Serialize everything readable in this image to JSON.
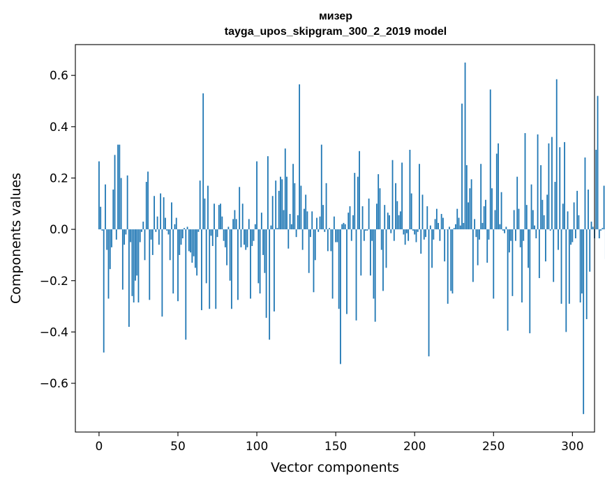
{
  "chart_data": {
    "type": "bar",
    "title_line1": "мизер",
    "title_line2": "tayga_upos_skipgram_300_2_2019 model",
    "xlabel": "Vector components",
    "ylabel": "Components values",
    "xlim": [
      -15,
      314
    ],
    "ylim": [
      -0.79,
      0.72
    ],
    "xticks": [
      0,
      50,
      100,
      150,
      200,
      250,
      300
    ],
    "xtick_labels": [
      "0",
      "50",
      "100",
      "150",
      "200",
      "250",
      "300"
    ],
    "yticks": [
      -0.6,
      -0.4,
      -0.2,
      0.0,
      0.2,
      0.4,
      0.6
    ],
    "ytick_labels": [
      "−0.6",
      "−0.4",
      "−0.2",
      "0.0",
      "0.2",
      "0.4",
      "0.6"
    ],
    "bar_color": "#1f77b4",
    "values": [
      0.265,
      0.088,
      -0.005,
      -0.48,
      0.175,
      -0.08,
      -0.27,
      -0.155,
      -0.07,
      0.155,
      0.29,
      -0.04,
      0.33,
      0.33,
      0.2,
      -0.235,
      -0.06,
      -0.02,
      0.21,
      -0.38,
      -0.05,
      -0.26,
      -0.285,
      -0.2,
      -0.18,
      -0.285,
      -0.05,
      -0.01,
      0.03,
      -0.12,
      0.185,
      0.225,
      -0.275,
      -0.04,
      -0.1,
      0.13,
      -0.01,
      0.05,
      -0.06,
      0.14,
      -0.34,
      0.125,
      0.045,
      -0.005,
      -0.02,
      -0.12,
      0.105,
      -0.25,
      0.02,
      0.045,
      -0.28,
      -0.1,
      -0.06,
      -0.035,
      0.005,
      -0.43,
      0.01,
      -0.085,
      -0.09,
      -0.13,
      -0.105,
      -0.15,
      -0.18,
      -0.01,
      0.19,
      -0.315,
      0.53,
      0.12,
      -0.21,
      0.17,
      -0.31,
      -0.025,
      -0.065,
      0.1,
      -0.31,
      -0.03,
      0.095,
      0.1,
      0.05,
      -0.045,
      -0.07,
      -0.14,
      0.01,
      -0.2,
      -0.31,
      0.04,
      0.075,
      0.04,
      -0.275,
      0.165,
      -0.07,
      0.1,
      -0.06,
      -0.08,
      -0.07,
      0.04,
      -0.27,
      -0.065,
      -0.045,
      0.02,
      0.265,
      -0.21,
      -0.25,
      0.065,
      -0.1,
      -0.17,
      -0.345,
      0.285,
      -0.43,
      0.015,
      0.13,
      -0.32,
      0.19,
      0.005,
      0.15,
      0.205,
      0.195,
      0.075,
      0.315,
      0.205,
      -0.075,
      0.06,
      0.02,
      0.255,
      0.18,
      -0.03,
      0.055,
      0.565,
      0.17,
      -0.08,
      0.08,
      0.135,
      0.07,
      -0.17,
      -0.03,
      0.07,
      -0.245,
      -0.12,
      0.045,
      -0.01,
      0.05,
      0.33,
      0.095,
      -0.01,
      0.18,
      -0.085,
      0.005,
      -0.085,
      -0.27,
      0.05,
      -0.05,
      -0.05,
      -0.31,
      -0.525,
      0.02,
      0.025,
      0.02,
      -0.33,
      0.065,
      0.09,
      -0.045,
      0.055,
      0.22,
      -0.355,
      0.205,
      0.305,
      -0.18,
      0.09,
      -0.045,
      -0.005,
      -0.005,
      0.12,
      -0.18,
      -0.045,
      -0.27,
      -0.36,
      0.1,
      0.215,
      0.16,
      -0.08,
      -0.24,
      0.095,
      -0.15,
      0.065,
      0.055,
      -0.015,
      0.27,
      -0.045,
      0.18,
      0.11,
      0.055,
      0.07,
      0.26,
      -0.02,
      -0.06,
      -0.015,
      -0.045,
      0.31,
      0.14,
      -0.005,
      -0.02,
      -0.05,
      -0.01,
      0.255,
      -0.095,
      0.135,
      -0.04,
      -0.03,
      0.09,
      -0.495,
      0.015,
      -0.15,
      -0.04,
      0.04,
      0.08,
      0.025,
      -0.045,
      0.06,
      0.045,
      -0.125,
      0.0,
      -0.29,
      0.01,
      -0.24,
      -0.25,
      0.005,
      0.02,
      0.08,
      0.045,
      0.015,
      0.49,
      0.025,
      0.65,
      0.25,
      0.105,
      0.16,
      0.195,
      -0.205,
      0.04,
      -0.03,
      -0.14,
      -0.04,
      0.255,
      0.025,
      0.09,
      0.115,
      -0.13,
      -0.04,
      0.545,
      0.16,
      -0.27,
      0.075,
      0.295,
      0.335,
      0.02,
      0.145,
      -0.005,
      -0.015,
      0.01,
      -0.395,
      -0.09,
      -0.045,
      -0.26,
      0.075,
      -0.045,
      0.205,
      0.08,
      -0.07,
      -0.285,
      -0.045,
      0.375,
      0.095,
      -0.15,
      -0.405,
      0.175,
      0.075,
      0.015,
      -0.035,
      0.37,
      -0.19,
      0.25,
      0.115,
      0.055,
      -0.125,
      0.135,
      0.335,
      -0.005,
      0.36,
      -0.205,
      0.185,
      0.585,
      -0.08,
      0.32,
      -0.29,
      0.1,
      0.34,
      -0.4,
      0.07,
      -0.29,
      -0.06,
      -0.05,
      0.105,
      -0.035,
      0.15,
      0.055,
      -0.285,
      -0.25,
      -0.72,
      0.28,
      -0.35,
      0.155,
      -0.165,
      0.03,
      0.01,
      -0.035,
      0.31,
      0.52,
      -0.035,
      -0.005,
      0.005,
      0.17,
      -0.115,
      0.0
    ]
  }
}
